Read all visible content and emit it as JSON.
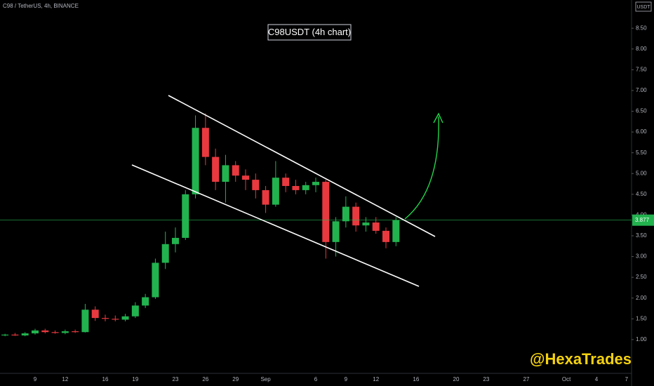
{
  "chart_data": {
    "type": "candlestick",
    "title": "C98USDT (4h chart)",
    "symbol": "C98 / TetherUS, 4h, BINANCE",
    "currency": "USDT",
    "watermark": "@HexaTrades",
    "categories": [
      null,
      null,
      null,
      "9",
      null,
      null,
      "12",
      null,
      null,
      null,
      "16",
      null,
      null,
      "19",
      null,
      null,
      null,
      "23",
      null,
      null,
      "26",
      null,
      null,
      "29",
      null,
      null,
      "Sep",
      null,
      null,
      null,
      null,
      "6",
      null,
      null,
      "9",
      null,
      null,
      "12",
      null,
      null,
      null,
      "16",
      null,
      null,
      null,
      "20",
      null,
      null,
      "23",
      null,
      null,
      null,
      "27",
      null,
      null,
      null,
      "Oct",
      null,
      null,
      "4",
      null,
      null,
      "7"
    ],
    "open": [
      1.1,
      1.12,
      1.1,
      1.15,
      1.22,
      1.18,
      1.16,
      1.2,
      1.18,
      1.72,
      1.52,
      1.5,
      1.48,
      1.56,
      1.82,
      2.02,
      2.85,
      3.3,
      3.45,
      4.5,
      6.1,
      5.4,
      4.8,
      5.2,
      4.95,
      4.85,
      4.6,
      4.25,
      4.9,
      4.7,
      4.6,
      4.72,
      4.8,
      3.35,
      3.85,
      4.2,
      3.75,
      3.82,
      3.62,
      3.35,
      null,
      null,
      null,
      null,
      null,
      null,
      null,
      null,
      null,
      null,
      null,
      null,
      null,
      null,
      null,
      null,
      null,
      null,
      null,
      null,
      null,
      null,
      null
    ],
    "high": [
      1.14,
      1.16,
      1.18,
      1.26,
      1.26,
      1.22,
      1.24,
      1.24,
      1.86,
      1.8,
      1.6,
      1.58,
      1.62,
      1.9,
      2.1,
      2.95,
      3.6,
      3.7,
      4.6,
      6.4,
      6.45,
      5.6,
      5.45,
      5.3,
      5.1,
      5.0,
      4.7,
      5.3,
      5.0,
      4.85,
      4.8,
      4.9,
      4.85,
      3.95,
      4.45,
      4.3,
      3.95,
      3.95,
      3.7,
      3.95,
      null,
      null,
      null,
      null,
      null,
      null,
      null,
      null,
      null,
      null,
      null,
      null,
      null,
      null,
      null,
      null,
      null,
      null,
      null,
      null,
      null,
      null,
      null
    ],
    "low": [
      1.08,
      1.09,
      1.08,
      1.12,
      1.15,
      1.14,
      1.13,
      1.16,
      1.17,
      1.45,
      1.44,
      1.44,
      1.44,
      1.52,
      1.76,
      1.98,
      2.7,
      3.1,
      3.4,
      4.4,
      5.2,
      4.6,
      4.3,
      4.8,
      4.6,
      4.4,
      4.05,
      4.2,
      4.55,
      4.5,
      4.5,
      4.55,
      2.95,
      3.0,
      3.7,
      3.6,
      3.6,
      3.55,
      3.2,
      3.25,
      null,
      null,
      null,
      null,
      null,
      null,
      null,
      null,
      null,
      null,
      null,
      null,
      null,
      null,
      null,
      null,
      null,
      null,
      null,
      null,
      null,
      null,
      null
    ],
    "close": [
      1.12,
      1.1,
      1.15,
      1.22,
      1.18,
      1.16,
      1.2,
      1.18,
      1.72,
      1.52,
      1.5,
      1.48,
      1.56,
      1.82,
      2.02,
      2.85,
      3.3,
      3.45,
      4.5,
      6.1,
      5.4,
      4.8,
      5.2,
      4.95,
      4.85,
      4.6,
      4.25,
      4.9,
      4.7,
      4.6,
      4.72,
      4.8,
      3.35,
      3.85,
      4.2,
      3.75,
      3.82,
      3.62,
      3.35,
      3.877,
      null,
      null,
      null,
      null,
      null,
      null,
      null,
      null,
      null,
      null,
      null,
      null,
      null,
      null,
      null,
      null,
      null,
      null,
      null,
      null,
      null,
      null,
      null
    ],
    "up_color": "#22b34f",
    "down_color": "#e8393f",
    "last_price": 3.877,
    "ylim": [
      0.22,
      9.18
    ],
    "yticks": [
      {
        "value": 1,
        "label": "1.00"
      },
      {
        "value": 1.5,
        "label": "1.50"
      },
      {
        "value": 2,
        "label": "2.00"
      },
      {
        "value": 2.5,
        "label": "2.50"
      },
      {
        "value": 3,
        "label": "3.00"
      },
      {
        "value": 3.5,
        "label": "3.50"
      },
      {
        "value": 4,
        "label": "4.00"
      },
      {
        "value": 4.5,
        "label": "4.50"
      },
      {
        "value": 5,
        "label": "5.00"
      },
      {
        "value": 5.5,
        "label": "5.50"
      },
      {
        "value": 6,
        "label": "6.00"
      },
      {
        "value": 6.5,
        "label": "6.50"
      },
      {
        "value": 7,
        "label": "7.00"
      },
      {
        "value": 7.5,
        "label": "7.50"
      },
      {
        "value": 8,
        "label": "8.00"
      },
      {
        "value": 8.5,
        "label": "8.50"
      }
    ]
  }
}
